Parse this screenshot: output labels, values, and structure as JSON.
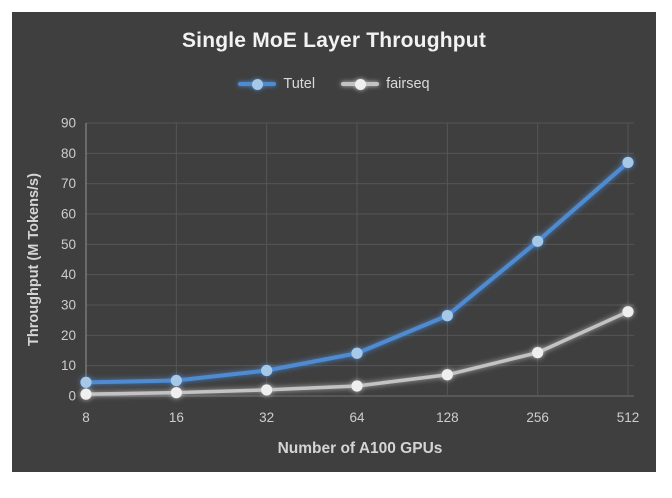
{
  "chart": {
    "background_color": "#3f3f3f",
    "page_background": "#ffffff",
    "title_color": "#f2f2f2",
    "tick_label_color": "#cdcdcd",
    "axis_title_color": "#d4d4d4",
    "gridline_color": "#565656",
    "axis_line_color": "#949494",
    "zero_line_color": "#6f6f6f"
  },
  "chart_data": {
    "type": "line",
    "title": "Single MoE Layer Throughput",
    "xlabel": "Number of A100 GPUs",
    "ylabel": "Throughput (M Tokens/s)",
    "categories": [
      "8",
      "16",
      "32",
      "64",
      "128",
      "256",
      "512"
    ],
    "x_scale": "categorical (powers of 2)",
    "ylim": [
      0,
      90
    ],
    "ytick_step": 10,
    "grid": true,
    "legend_position": "top",
    "series": [
      {
        "name": "Tutel",
        "color": "#4f8bd1",
        "marker_color": "#a6c9e8",
        "values": [
          4.5,
          5.1,
          8.4,
          14.1,
          26.5,
          51.0,
          77.0
        ]
      },
      {
        "name": "fairseq",
        "color": "#c3c3c3",
        "marker_color": "#efefef",
        "values": [
          0.6,
          1.1,
          2.0,
          3.3,
          7.0,
          14.3,
          27.8
        ]
      }
    ]
  }
}
